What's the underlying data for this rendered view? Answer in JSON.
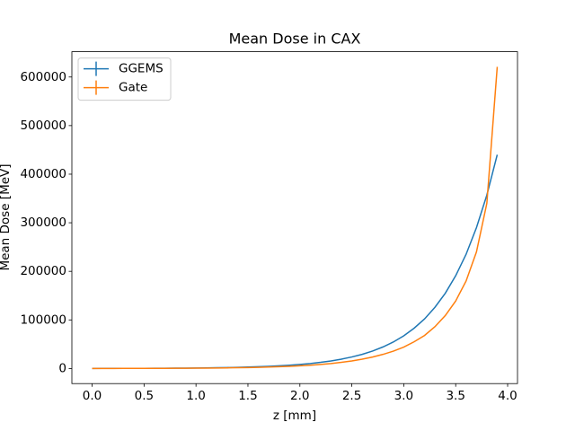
{
  "chart_data": {
    "type": "line",
    "title": "Mean Dose in CAX",
    "xlabel": "z [mm]",
    "ylabel": "Mean Dose [MeV]",
    "x": [
      0.0,
      0.1,
      0.2,
      0.3,
      0.4,
      0.5,
      0.6,
      0.7,
      0.8,
      0.9,
      1.0,
      1.1,
      1.2,
      1.3,
      1.4,
      1.5,
      1.6,
      1.7,
      1.8,
      1.9,
      2.0,
      2.1,
      2.2,
      2.3,
      2.4,
      2.5,
      2.6,
      2.7,
      2.8,
      2.9,
      3.0,
      3.1,
      3.2,
      3.3,
      3.4,
      3.5,
      3.6,
      3.7,
      3.8,
      3.9
    ],
    "series": [
      {
        "name": "GGEMS",
        "color": "#1f77b4",
        "values": [
          130,
          160,
          200,
          240,
          300,
          370,
          450,
          560,
          690,
          850,
          1040,
          1290,
          1580,
          1950,
          2400,
          2960,
          3650,
          4500,
          5500,
          6800,
          8400,
          10300,
          12700,
          15600,
          19300,
          23700,
          29200,
          36000,
          44400,
          54600,
          67300,
          83000,
          102000,
          126000,
          155000,
          191000,
          235000,
          290000,
          357000,
          440000
        ]
      },
      {
        "name": "Gate",
        "color": "#ff7f0e",
        "values": [
          86,
          106,
          130,
          160,
          200,
          245,
          300,
          370,
          460,
          565,
          695,
          855,
          1050,
          1290,
          1590,
          1960,
          2410,
          2970,
          3650,
          4500,
          5500,
          6800,
          8400,
          10300,
          12700,
          15600,
          19200,
          23600,
          29100,
          35800,
          44000,
          55000,
          68000,
          86000,
          109000,
          139000,
          180000,
          240000,
          340000,
          621000
        ]
      }
    ],
    "xlim": [
      -0.195,
      4.095
    ],
    "ylim": [
      -31050,
      652050
    ],
    "xticks": [
      {
        "value": 0,
        "label": "0.0"
      },
      0.5,
      {
        "value": 1,
        "label": "1.0"
      },
      1.5,
      {
        "value": 2,
        "label": "2.0"
      },
      2.5,
      {
        "value": 3,
        "label": "3.0"
      },
      3.5,
      {
        "value": 4,
        "label": "4.0"
      }
    ],
    "yticks": [
      0,
      100000,
      200000,
      300000,
      400000,
      500000,
      600000
    ],
    "legend": "upper left",
    "grid": false
  }
}
